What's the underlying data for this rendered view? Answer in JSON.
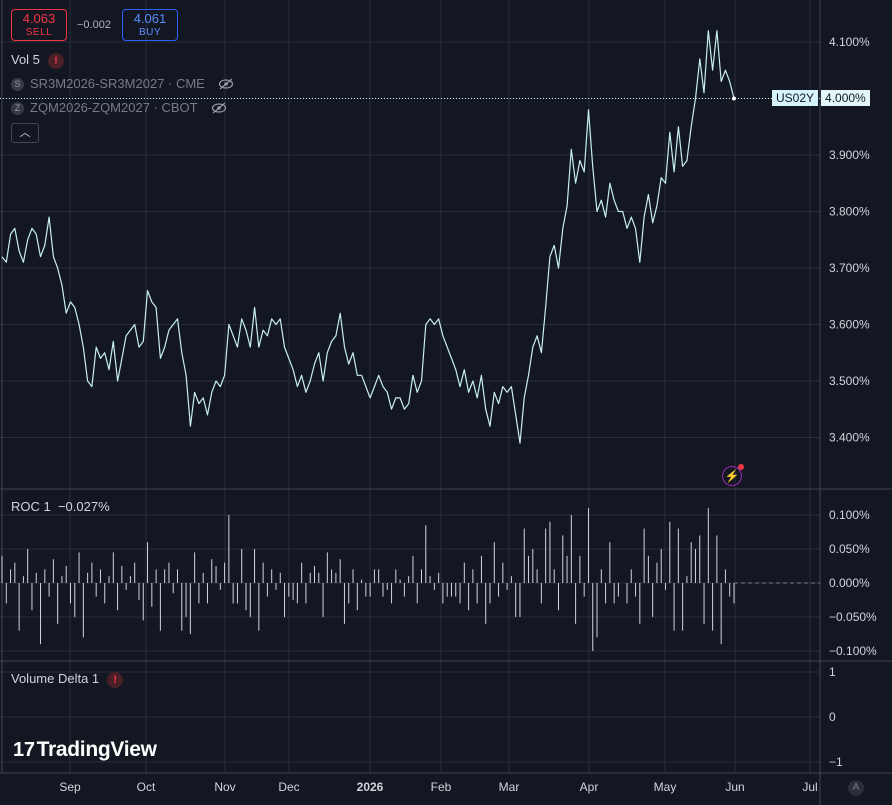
{
  "trade": {
    "sell_price": "4.063",
    "sell_label": "SELL",
    "buy_price": "4.061",
    "buy_label": "BUY",
    "spread": "−0.002"
  },
  "legend": {
    "vol_label": "Vol 5",
    "series": [
      {
        "badge": "S",
        "name": "SR3M2026-SR3M2027 · CME"
      },
      {
        "badge": "Z",
        "name": "ZQM2026-ZQM2027 · CBOT"
      }
    ],
    "collapse_icon": "chevron-up-icon"
  },
  "price_tag": {
    "symbol": "US02Y",
    "value": "4.000%"
  },
  "roc": {
    "label": "ROC 1",
    "value": "−0.027%"
  },
  "volume_delta": {
    "label": "Volume Delta 1"
  },
  "logo": {
    "text": "TradingView",
    "mark": "17"
  },
  "auto_button": "A",
  "colors": {
    "background": "#131722",
    "line": "#c7eef3",
    "grid": "#2a2e39",
    "text": "#d1d4dc",
    "sell": "#f23645",
    "buy": "#2962ff"
  },
  "chart_data": [
    {
      "type": "line",
      "series_name": "US02Y",
      "y_ticks": [
        "4.100%",
        "4.000%",
        "3.900%",
        "3.800%",
        "3.700%",
        "3.600%",
        "3.500%",
        "3.400%"
      ],
      "ylim": [
        3.37,
        4.13
      ],
      "x_labels": [
        "Sep",
        "Oct",
        "Nov",
        "Dec",
        "2026",
        "Feb",
        "Mar",
        "Apr",
        "May",
        "Jun",
        "Jul"
      ],
      "values": [
        3.72,
        3.71,
        3.76,
        3.77,
        3.73,
        3.71,
        3.75,
        3.77,
        3.76,
        3.72,
        3.74,
        3.79,
        3.72,
        3.7,
        3.67,
        3.62,
        3.64,
        3.63,
        3.6,
        3.56,
        3.5,
        3.49,
        3.56,
        3.54,
        3.55,
        3.52,
        3.57,
        3.5,
        3.54,
        3.58,
        3.59,
        3.6,
        3.56,
        3.57,
        3.66,
        3.64,
        3.63,
        3.54,
        3.56,
        3.59,
        3.6,
        3.61,
        3.55,
        3.51,
        3.42,
        3.48,
        3.46,
        3.47,
        3.44,
        3.48,
        3.5,
        3.49,
        3.51,
        3.6,
        3.58,
        3.56,
        3.61,
        3.59,
        3.56,
        3.63,
        3.56,
        3.59,
        3.58,
        3.61,
        3.6,
        3.61,
        3.56,
        3.54,
        3.52,
        3.49,
        3.51,
        3.48,
        3.5,
        3.53,
        3.55,
        3.5,
        3.55,
        3.57,
        3.58,
        3.62,
        3.56,
        3.53,
        3.55,
        3.51,
        3.51,
        3.49,
        3.47,
        3.49,
        3.51,
        3.49,
        3.48,
        3.45,
        3.47,
        3.47,
        3.45,
        3.46,
        3.51,
        3.48,
        3.5,
        3.6,
        3.61,
        3.6,
        3.61,
        3.58,
        3.56,
        3.54,
        3.52,
        3.49,
        3.52,
        3.48,
        3.5,
        3.47,
        3.51,
        3.45,
        3.42,
        3.48,
        3.46,
        3.49,
        3.48,
        3.49,
        3.44,
        3.39,
        3.47,
        3.51,
        3.56,
        3.58,
        3.55,
        3.63,
        3.72,
        3.74,
        3.7,
        3.77,
        3.81,
        3.91,
        3.85,
        3.89,
        3.87,
        3.98,
        3.88,
        3.8,
        3.82,
        3.79,
        3.85,
        3.82,
        3.8,
        3.8,
        3.77,
        3.79,
        3.77,
        3.71,
        3.79,
        3.83,
        3.78,
        3.81,
        3.86,
        3.85,
        3.94,
        3.87,
        3.95,
        3.88,
        3.89,
        3.95,
        4.0,
        4.07,
        4.01,
        4.12,
        4.05,
        4.12,
        4.03,
        4.05,
        4.03,
        4.0
      ],
      "last_value": 4.0
    },
    {
      "type": "bar",
      "series_name": "ROC 1",
      "y_ticks": [
        "0.100%",
        "0.050%",
        "0.000%",
        "−0.050%",
        "−0.100%"
      ],
      "ylim": [
        -0.1,
        0.1
      ],
      "values": [
        0.04,
        -0.03,
        0.02,
        0.03,
        -0.07,
        0.01,
        0.05,
        -0.04,
        0.015,
        -0.09,
        0.02,
        -0.02,
        0.035,
        -0.06,
        0.01,
        0.025,
        -0.03,
        -0.05,
        0.045,
        -0.08,
        0.015,
        0.03,
        -0.02,
        0.02,
        -0.03,
        0.01,
        0.045,
        -0.04,
        0.025,
        -0.01,
        0.01,
        0.03,
        -0.025,
        -0.055,
        0.06,
        -0.035,
        0.02,
        -0.07,
        0.02,
        0.03,
        -0.015,
        0.02,
        -0.07,
        -0.05,
        -0.075,
        0.045,
        -0.03,
        0.015,
        -0.03,
        0.035,
        0.025,
        -0.01,
        0.03,
        0.1,
        -0.03,
        -0.03,
        0.05,
        -0.04,
        -0.05,
        0.05,
        -0.07,
        0.03,
        -0.02,
        0.02,
        -0.01,
        0.015,
        -0.05,
        -0.02,
        -0.025,
        -0.03,
        0.03,
        -0.03,
        0.015,
        0.025,
        0.015,
        -0.05,
        0.045,
        0.02,
        0.015,
        0.035,
        -0.06,
        -0.03,
        0.02,
        -0.04,
        0.005,
        -0.02,
        -0.02,
        0.02,
        0.02,
        -0.02,
        -0.01,
        -0.03,
        0.02,
        0.005,
        -0.02,
        0.01,
        0.04,
        -0.03,
        0.02,
        0.085,
        0.01,
        -0.01,
        0.015,
        -0.03,
        -0.02,
        -0.02,
        -0.02,
        -0.03,
        0.03,
        -0.04,
        0.02,
        -0.03,
        0.04,
        -0.06,
        -0.03,
        0.06,
        -0.02,
        0.03,
        -0.01,
        0.01,
        -0.05,
        -0.05,
        0.08,
        0.04,
        0.05,
        0.02,
        -0.03,
        0.08,
        0.09,
        0.02,
        -0.04,
        0.07,
        0.04,
        0.1,
        -0.06,
        0.04,
        -0.02,
        0.11,
        -0.1,
        -0.08,
        0.02,
        -0.03,
        0.06,
        -0.03,
        -0.02,
        0.0,
        -0.03,
        0.02,
        -0.02,
        -0.06,
        0.08,
        0.04,
        -0.05,
        0.03,
        0.05,
        -0.01,
        0.09,
        -0.07,
        0.08,
        -0.07,
        0.01,
        0.06,
        0.05,
        0.07,
        -0.06,
        0.11,
        -0.07,
        0.07,
        -0.09,
        0.02,
        -0.02,
        -0.03
      ]
    },
    {
      "type": "bar",
      "series_name": "Volume Delta 1",
      "y_ticks": [
        "1",
        "0",
        "−1"
      ],
      "ylim": [
        -1,
        1
      ],
      "values": []
    }
  ]
}
